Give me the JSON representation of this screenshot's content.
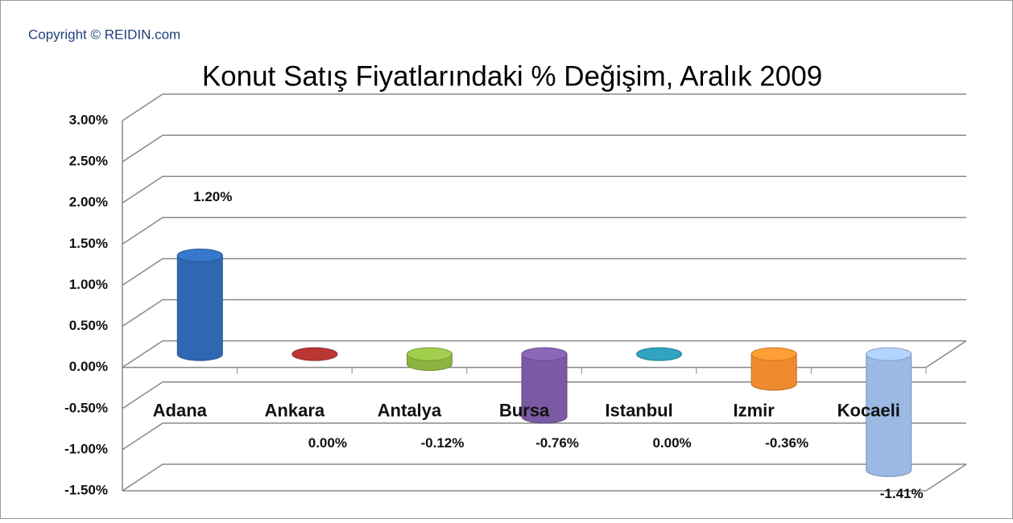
{
  "chart_data": {
    "type": "bar",
    "title": "Konut Satış Fiyatlarındaki % Değişim, Aralık 2009",
    "subtitle": "Copyright © REIDIN.com",
    "categories": [
      "Adana",
      "Ankara",
      "Antalya",
      "Bursa",
      "Istanbul",
      "Izmir",
      "Kocaeli"
    ],
    "series": [
      {
        "name": "Değişim",
        "values": [
          1.2,
          0.0,
          -0.12,
          -0.76,
          0.0,
          -0.36,
          -1.41
        ]
      }
    ],
    "value_labels": [
      "1.20%",
      "0.00%",
      "-0.12%",
      "-0.76%",
      "0.00%",
      "-0.36%",
      "-1.41%"
    ],
    "colors": [
      "#2f68b2",
      "#a3302e",
      "#8db443",
      "#7a5aa2",
      "#2a8fa8",
      "#f08a2e",
      "#9bb9e2"
    ],
    "ylim": [
      -1.5,
      3
    ],
    "yticks": [
      {
        "value": 3,
        "label": "3.00%"
      },
      {
        "value": 2.5,
        "label": "2.50%"
      },
      {
        "value": 2,
        "label": "2.00%"
      },
      {
        "value": 1.5,
        "label": "1.50%"
      },
      {
        "value": 1,
        "label": "1.00%"
      },
      {
        "value": 0.5,
        "label": "0.50%"
      },
      {
        "value": 0,
        "label": "0.00%"
      },
      {
        "value": -0.5,
        "label": "-0.50%"
      },
      {
        "value": -1,
        "label": "-1.00%"
      },
      {
        "value": -1.5,
        "label": "-1.50%"
      }
    ],
    "grid": true
  }
}
